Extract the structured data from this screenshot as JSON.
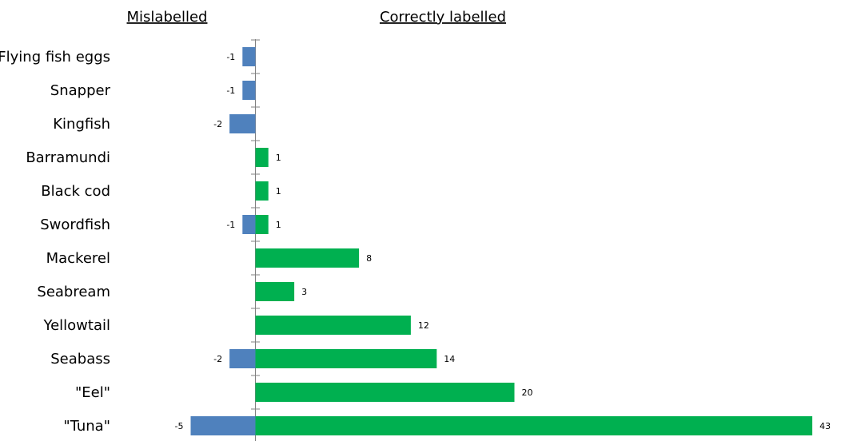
{
  "chart_data": {
    "type": "bar",
    "orientation": "horizontal",
    "headers": {
      "left": "Mislabelled",
      "right": "Correctly labelled"
    },
    "categories": [
      "Flying fish eggs",
      "Snapper",
      "Kingfish",
      "Barramundi",
      "Black cod",
      "Swordfish",
      "Mackerel",
      "Seabream",
      "Yellowtail",
      "Seabass",
      "\"Eel\"",
      "\"Tuna\""
    ],
    "series": [
      {
        "key": "mislabelled",
        "color": "#4f81bd",
        "values": [
          -1,
          -1,
          -2,
          null,
          null,
          -1,
          null,
          null,
          null,
          -2,
          null,
          -5
        ]
      },
      {
        "key": "correct",
        "color": "#00b050",
        "values": [
          null,
          null,
          null,
          1,
          1,
          1,
          8,
          3,
          12,
          14,
          20,
          43
        ]
      }
    ],
    "xlim": [
      -5,
      43
    ],
    "grid": false,
    "legend": "none"
  }
}
